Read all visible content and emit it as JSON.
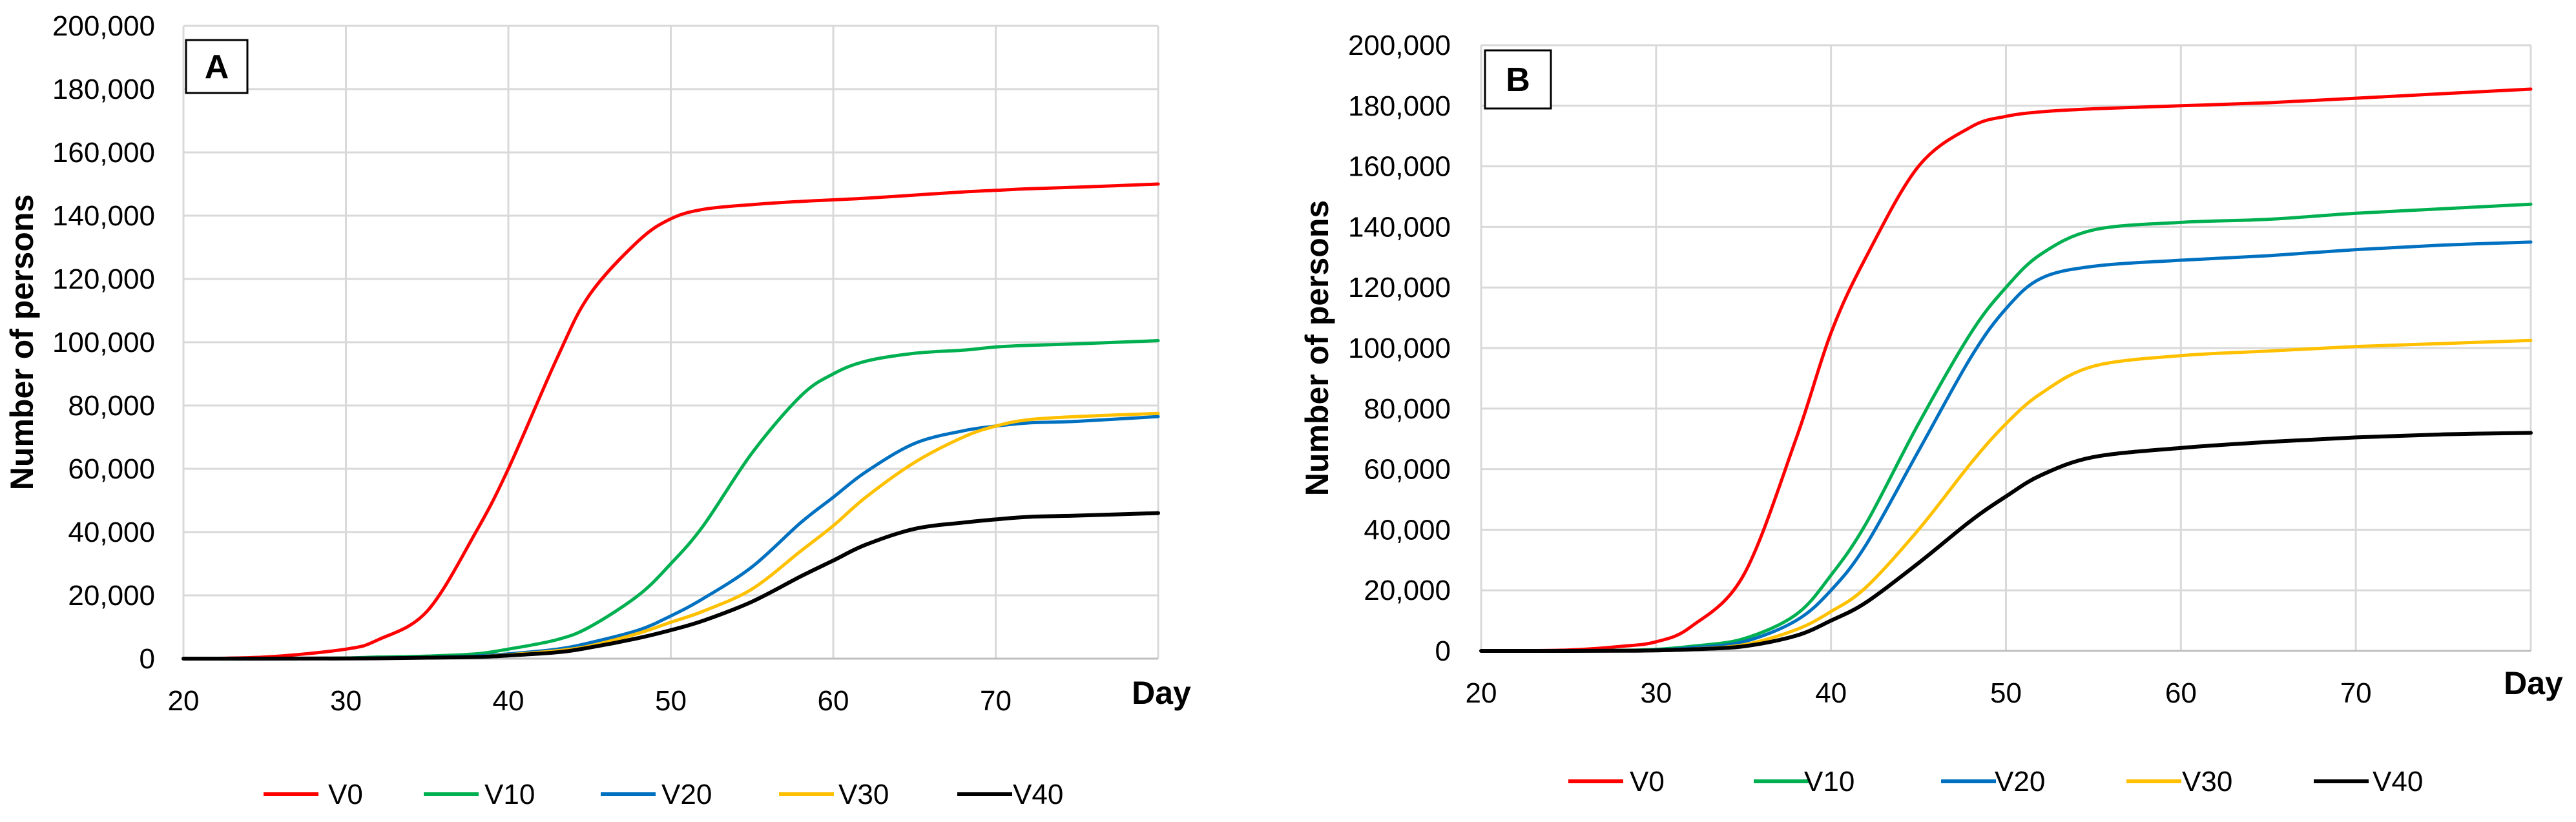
{
  "chart_data": [
    {
      "type": "line",
      "panel_label": "A",
      "ylabel": "Number of  persons",
      "xlabel": "Day",
      "xlim": [
        20,
        80
      ],
      "ylim": [
        0,
        200000
      ],
      "x_ticks": [
        20,
        30,
        40,
        50,
        60,
        70
      ],
      "x_tick_labels": [
        "20",
        "30",
        "40",
        "50",
        "60",
        "70"
      ],
      "y_ticks": [
        0,
        20000,
        40000,
        60000,
        80000,
        100000,
        120000,
        140000,
        160000,
        180000,
        200000
      ],
      "y_tick_labels": [
        "0",
        "20,000",
        "40,000",
        "60,000",
        "80,000",
        "100,000",
        "120,000",
        "140,000",
        "160,000",
        "180,000",
        "200,000"
      ],
      "grid": true,
      "legend_position": "bottom",
      "x": [
        20,
        25,
        30,
        32,
        35,
        38,
        40,
        43,
        45,
        48,
        50,
        52,
        55,
        58,
        60,
        62,
        65,
        68,
        70,
        72,
        75,
        80
      ],
      "series": [
        {
          "name": "V0",
          "color": "#ff0000",
          "values": [
            0,
            500,
            3000,
            6000,
            15000,
            40000,
            60000,
            95000,
            115000,
            132000,
            139000,
            142000,
            143500,
            144500,
            145000,
            145500,
            146500,
            147500,
            148000,
            148500,
            149000,
            150000
          ]
        },
        {
          "name": "V10",
          "color": "#00b050",
          "values": [
            0,
            0,
            200,
            500,
            800,
            1500,
            3000,
            6000,
            10000,
            20000,
            30000,
            42000,
            65000,
            83000,
            90000,
            94000,
            96500,
            97500,
            98500,
            99000,
            99500,
            100500
          ]
        },
        {
          "name": "V20",
          "color": "#0070c0",
          "values": [
            0,
            0,
            100,
            200,
            400,
            800,
            1500,
            3000,
            5000,
            9000,
            13500,
            19000,
            29000,
            43000,
            51000,
            59000,
            68000,
            72000,
            73500,
            74500,
            75000,
            76500
          ]
        },
        {
          "name": "V30",
          "color": "#ffc000",
          "values": [
            0,
            0,
            50,
            100,
            300,
            600,
            1200,
            2500,
            4000,
            8000,
            11500,
            15000,
            22000,
            34000,
            42000,
            51000,
            62000,
            70000,
            73500,
            75500,
            76500,
            77500
          ]
        },
        {
          "name": "V40",
          "color": "#000000",
          "values": [
            0,
            0,
            50,
            100,
            300,
            500,
            1000,
            2000,
            3500,
            6500,
            9000,
            12000,
            18000,
            26000,
            31000,
            36000,
            41000,
            43000,
            44000,
            44800,
            45200,
            46000
          ]
        }
      ]
    },
    {
      "type": "line",
      "panel_label": "B",
      "ylabel": "Number of  persons",
      "xlabel": "Day",
      "xlim": [
        20,
        80
      ],
      "ylim": [
        0,
        200000
      ],
      "x_ticks": [
        20,
        30,
        40,
        50,
        60,
        70
      ],
      "x_tick_labels": [
        "20",
        "30",
        "40",
        "50",
        "60",
        "70"
      ],
      "y_ticks": [
        0,
        20000,
        40000,
        60000,
        80000,
        100000,
        120000,
        140000,
        160000,
        180000,
        200000
      ],
      "y_tick_labels": [
        "0",
        "20,000",
        "40,000",
        "60,000",
        "80,000",
        "100,000",
        "120,000",
        "140,000",
        "160,000",
        "180,000",
        "200,000"
      ],
      "grid": true,
      "legend_position": "bottom",
      "x": [
        20,
        25,
        28,
        30,
        32,
        35,
        38,
        40,
        42,
        45,
        48,
        50,
        52,
        55,
        60,
        65,
        70,
        75,
        80
      ],
      "series": [
        {
          "name": "V0",
          "color": "#ff0000",
          "values": [
            0,
            300,
            1500,
            3000,
            8000,
            25000,
            70000,
            105000,
            130000,
            160000,
            173000,
            176500,
            178000,
            179000,
            180000,
            181000,
            182500,
            184000,
            185500
          ]
        },
        {
          "name": "V10",
          "color": "#00b050",
          "values": [
            0,
            0,
            200,
            500,
            1500,
            4000,
            12000,
            25000,
            42000,
            75000,
            105000,
            120000,
            131000,
            139000,
            141500,
            142500,
            144500,
            146000,
            147500
          ]
        },
        {
          "name": "V20",
          "color": "#0070c0",
          "values": [
            0,
            0,
            100,
            300,
            1000,
            3000,
            10000,
            20000,
            35000,
            66000,
            97000,
            113000,
            123000,
            127000,
            129000,
            130500,
            132500,
            134000,
            135000
          ]
        },
        {
          "name": "V30",
          "color": "#ffc000",
          "values": [
            0,
            0,
            100,
            200,
            600,
            2000,
            7000,
            13000,
            21000,
            40000,
            62000,
            75000,
            85000,
            94000,
            97500,
            99000,
            100500,
            101500,
            102500
          ]
        },
        {
          "name": "V40",
          "color": "#000000",
          "values": [
            0,
            0,
            50,
            150,
            500,
            1500,
            5000,
            10000,
            16000,
            29000,
            43000,
            51000,
            58000,
            64000,
            67000,
            69000,
            70500,
            71500,
            72000
          ]
        }
      ]
    }
  ]
}
